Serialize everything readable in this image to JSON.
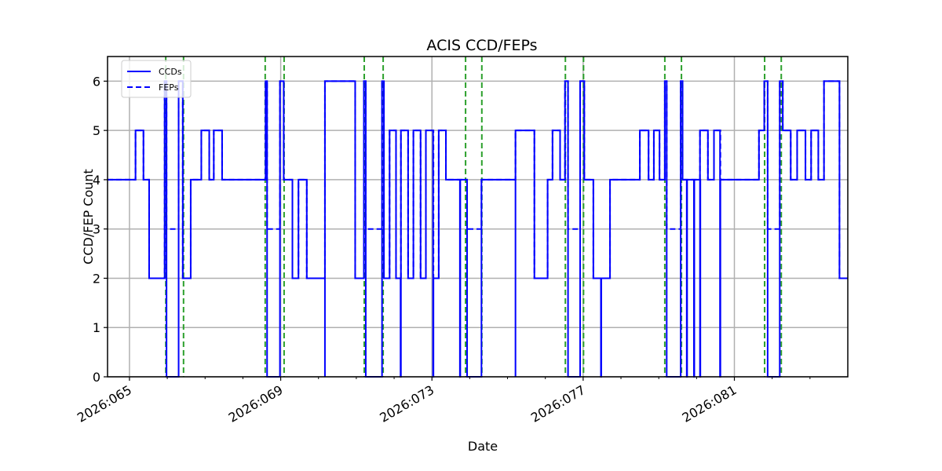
{
  "chart_data": {
    "type": "line",
    "title": "ACIS CCD/FEPs",
    "xlabel": "Date",
    "ylabel": "CCD/FEP Count",
    "xlim": [
      64.42,
      84.0
    ],
    "ylim": [
      0,
      6.5
    ],
    "grid": true,
    "legend_position": "upper left",
    "x_tick_labels": [
      "2026:065",
      "2026:069",
      "2026:073",
      "2026:077",
      "2026:081"
    ],
    "x_major_ticks": [
      65,
      69,
      73,
      77,
      81
    ],
    "x_minor_ticks": [
      66,
      67,
      68,
      70,
      71,
      72,
      74,
      75,
      76,
      78,
      79,
      80,
      82,
      83
    ],
    "y_ticks": [
      0,
      1,
      2,
      3,
      4,
      5,
      6
    ],
    "series": [
      {
        "name": "CCDs",
        "style": "solid",
        "color": "#0000ff",
        "step_points": [
          [
            64.42,
            4
          ],
          [
            65.16,
            5
          ],
          [
            65.37,
            4
          ],
          [
            65.52,
            2
          ],
          [
            65.93,
            6
          ],
          [
            65.98,
            0
          ],
          [
            66.3,
            6
          ],
          [
            66.41,
            2
          ],
          [
            66.62,
            4
          ],
          [
            66.9,
            5
          ],
          [
            67.11,
            4
          ],
          [
            67.23,
            5
          ],
          [
            67.45,
            4
          ],
          [
            68.6,
            6
          ],
          [
            68.64,
            0
          ],
          [
            68.98,
            6
          ],
          [
            69.08,
            4
          ],
          [
            69.31,
            2
          ],
          [
            69.47,
            4
          ],
          [
            69.69,
            2
          ],
          [
            70.17,
            0
          ],
          [
            70.17,
            6
          ],
          [
            70.97,
            2
          ],
          [
            71.2,
            6
          ],
          [
            71.25,
            0
          ],
          [
            71.68,
            6
          ],
          [
            71.73,
            2
          ],
          [
            71.88,
            5
          ],
          [
            72.05,
            2
          ],
          [
            72.17,
            0
          ],
          [
            72.18,
            5
          ],
          [
            72.37,
            2
          ],
          [
            72.51,
            5
          ],
          [
            72.7,
            2
          ],
          [
            72.84,
            5
          ],
          [
            73.03,
            0
          ],
          [
            73.04,
            2
          ],
          [
            73.18,
            5
          ],
          [
            73.37,
            4
          ],
          [
            73.74,
            0
          ],
          [
            73.75,
            4
          ],
          [
            73.93,
            0
          ],
          [
            74.31,
            4
          ],
          [
            75.21,
            0
          ],
          [
            75.21,
            5
          ],
          [
            75.71,
            2
          ],
          [
            76.06,
            4
          ],
          [
            76.19,
            5
          ],
          [
            76.39,
            4
          ],
          [
            76.52,
            6
          ],
          [
            76.6,
            0
          ],
          [
            76.92,
            6
          ],
          [
            77.03,
            4
          ],
          [
            77.27,
            2
          ],
          [
            77.47,
            0
          ],
          [
            77.48,
            2
          ],
          [
            77.71,
            4
          ],
          [
            78.5,
            5
          ],
          [
            78.73,
            4
          ],
          [
            78.87,
            5
          ],
          [
            79.02,
            4
          ],
          [
            79.16,
            6
          ],
          [
            79.21,
            0
          ],
          [
            79.58,
            6
          ],
          [
            79.63,
            4
          ],
          [
            79.74,
            0
          ],
          [
            79.75,
            4
          ],
          [
            79.93,
            0
          ],
          [
            79.94,
            4
          ],
          [
            80.09,
            0
          ],
          [
            80.1,
            4
          ],
          [
            80.09,
            5
          ],
          [
            80.3,
            4
          ],
          [
            80.46,
            5
          ],
          [
            80.62,
            0
          ],
          [
            80.63,
            4
          ],
          [
            81.65,
            5
          ],
          [
            81.79,
            6
          ],
          [
            81.88,
            0
          ],
          [
            82.2,
            6
          ],
          [
            82.28,
            5
          ],
          [
            82.49,
            4
          ],
          [
            82.66,
            5
          ],
          [
            82.88,
            4
          ],
          [
            83.03,
            5
          ],
          [
            83.22,
            4
          ],
          [
            83.37,
            6
          ],
          [
            83.78,
            2
          ],
          [
            84.0,
            2
          ]
        ]
      },
      {
        "name": "FEPs",
        "style": "dashed",
        "color": "#0000ff",
        "note": "Largely coincident with CCDs; differs (value 3) during intervals where CCDs drop to 0",
        "step_points": [
          [
            64.42,
            4
          ],
          [
            65.16,
            5
          ],
          [
            65.37,
            4
          ],
          [
            65.52,
            2
          ],
          [
            65.93,
            6
          ],
          [
            65.98,
            3
          ],
          [
            66.3,
            6
          ],
          [
            66.41,
            2
          ],
          [
            66.62,
            4
          ],
          [
            66.9,
            5
          ],
          [
            67.11,
            4
          ],
          [
            67.23,
            5
          ],
          [
            67.45,
            4
          ],
          [
            68.6,
            6
          ],
          [
            68.64,
            3
          ],
          [
            68.98,
            6
          ],
          [
            69.08,
            4
          ],
          [
            69.31,
            2
          ],
          [
            69.47,
            4
          ],
          [
            69.69,
            2
          ],
          [
            70.17,
            6
          ],
          [
            70.97,
            2
          ],
          [
            71.2,
            6
          ],
          [
            71.25,
            3
          ],
          [
            71.68,
            6
          ],
          [
            71.73,
            2
          ],
          [
            71.88,
            5
          ],
          [
            72.05,
            2
          ],
          [
            72.18,
            5
          ],
          [
            72.37,
            2
          ],
          [
            72.51,
            5
          ],
          [
            72.7,
            2
          ],
          [
            72.84,
            5
          ],
          [
            73.04,
            2
          ],
          [
            73.18,
            5
          ],
          [
            73.37,
            4
          ],
          [
            73.93,
            3
          ],
          [
            74.31,
            4
          ],
          [
            75.21,
            5
          ],
          [
            75.71,
            2
          ],
          [
            76.06,
            4
          ],
          [
            76.19,
            5
          ],
          [
            76.39,
            4
          ],
          [
            76.52,
            6
          ],
          [
            76.6,
            3
          ],
          [
            76.92,
            6
          ],
          [
            77.03,
            4
          ],
          [
            77.27,
            2
          ],
          [
            77.71,
            4
          ],
          [
            78.5,
            5
          ],
          [
            78.73,
            4
          ],
          [
            78.87,
            5
          ],
          [
            79.02,
            4
          ],
          [
            79.16,
            6
          ],
          [
            79.21,
            3
          ],
          [
            79.58,
            6
          ],
          [
            79.63,
            4
          ],
          [
            80.09,
            5
          ],
          [
            80.3,
            4
          ],
          [
            80.46,
            5
          ],
          [
            80.63,
            4
          ],
          [
            81.65,
            5
          ],
          [
            81.79,
            6
          ],
          [
            81.88,
            3
          ],
          [
            82.2,
            6
          ],
          [
            82.28,
            5
          ],
          [
            82.49,
            4
          ],
          [
            82.66,
            5
          ],
          [
            82.88,
            4
          ],
          [
            83.03,
            5
          ],
          [
            83.22,
            4
          ],
          [
            83.37,
            6
          ],
          [
            83.78,
            2
          ],
          [
            84.0,
            2
          ]
        ]
      }
    ],
    "vertical_markers": {
      "color": "#2ca02c",
      "style": "dashed",
      "x": [
        65.96,
        66.43,
        68.59,
        69.09,
        71.21,
        71.71,
        73.89,
        74.32,
        76.53,
        77.01,
        79.16,
        79.6,
        81.8,
        82.24
      ]
    }
  },
  "legend": {
    "items": [
      {
        "label": "CCDs",
        "style": "solid"
      },
      {
        "label": "FEPs",
        "style": "dashed"
      }
    ]
  }
}
